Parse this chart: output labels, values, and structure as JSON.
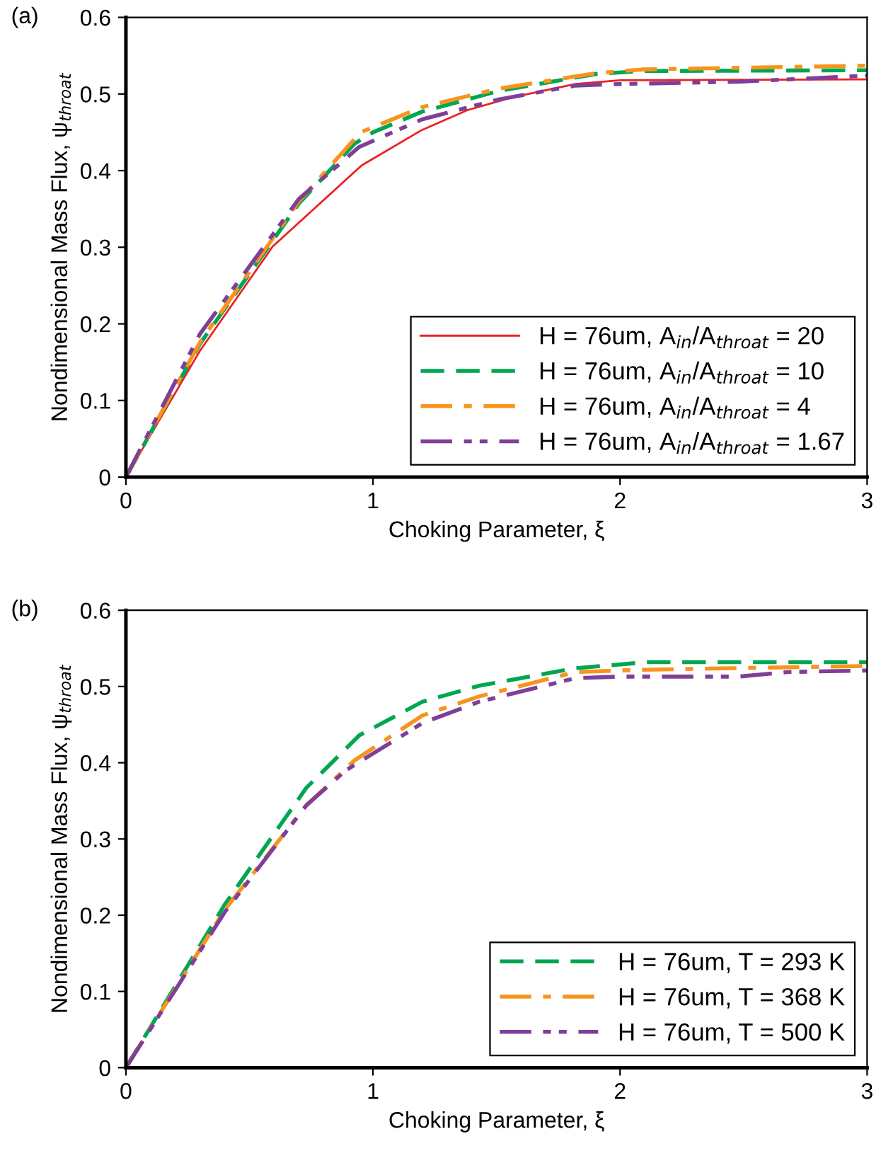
{
  "chart_data": [
    {
      "type": "line",
      "title": "(a)",
      "xlabel": "Choking Parameter, ξ",
      "ylabel": "Nondimensional Mass Flux, ψ$_{throat}$",
      "xlim": [
        0,
        3
      ],
      "ylim": [
        0,
        0.6
      ],
      "xticks": [
        0,
        1,
        2,
        3
      ],
      "yticks": [
        0,
        0.1,
        0.2,
        0.3,
        0.4,
        0.5,
        0.6
      ],
      "grid": false,
      "legend": "bottom right",
      "series": [
        {
          "name": "H = 76um, A$_{in}$/A$_{throat}$ = 20",
          "color": "#ed2024",
          "line_style": "solid",
          "x": [
            0,
            0.3,
            0.594,
            0.955,
            1.198,
            1.383,
            1.568,
            1.82,
            2.0,
            3.0
          ],
          "values": [
            0,
            0.165,
            0.301,
            0.407,
            0.453,
            0.479,
            0.496,
            0.513,
            0.518,
            0.519
          ]
        },
        {
          "name": "H = 76um, A$_{in}$/A$_{throat}$ = 10",
          "color": "#00a651",
          "line_style": "dashed",
          "x": [
            0,
            0.3,
            0.7,
            0.925,
            1.0,
            1.2,
            1.51,
            1.9,
            2.09,
            3.0
          ],
          "values": [
            0,
            0.174,
            0.357,
            0.435,
            0.45,
            0.477,
            0.504,
            0.526,
            0.53,
            0.531
          ]
        },
        {
          "name": "H = 76um, A$_{in}$/A$_{throat}$ = 4",
          "color": "#f7941d",
          "line_style": "dashdot",
          "x": [
            0,
            0.3,
            0.7,
            0.95,
            1.2,
            1.51,
            1.9,
            2.09,
            3.0
          ],
          "values": [
            0,
            0.176,
            0.36,
            0.45,
            0.483,
            0.507,
            0.527,
            0.532,
            0.537
          ]
        },
        {
          "name": "H = 76um, A$_{in}$/A$_{throat}$ = 1.67",
          "color": "#7f3f98",
          "line_style": "dashdotdot",
          "x": [
            0,
            0.3,
            0.7,
            0.945,
            1.2,
            1.51,
            1.82,
            2.0,
            2.48,
            3.0
          ],
          "values": [
            0,
            0.187,
            0.363,
            0.431,
            0.467,
            0.493,
            0.511,
            0.513,
            0.516,
            0.524
          ]
        }
      ]
    },
    {
      "type": "line",
      "title": "(b)",
      "xlabel": "Choking Parameter, ξ",
      "ylabel": "Nondimensional Mass Flux, ψ$_{throat}$",
      "xlim": [
        0,
        3
      ],
      "ylim": [
        0,
        0.6
      ],
      "xticks": [
        0,
        1,
        2,
        3
      ],
      "yticks": [
        0,
        0.1,
        0.2,
        0.3,
        0.4,
        0.5,
        0.6
      ],
      "grid": false,
      "legend": "bottom right",
      "series": [
        {
          "name": "H = 76um, T = 293 K",
          "color": "#00a651",
          "line_style": "dashed",
          "x": [
            0,
            0.4,
            0.73,
            0.945,
            1.2,
            1.43,
            1.82,
            2.11,
            3.0
          ],
          "values": [
            0,
            0.214,
            0.367,
            0.436,
            0.48,
            0.501,
            0.524,
            0.532,
            0.532
          ]
        },
        {
          "name": "H = 76um, T = 368 K",
          "color": "#f7941d",
          "line_style": "dashdot",
          "x": [
            0,
            0.4,
            0.73,
            0.925,
            1.2,
            1.43,
            1.82,
            2.09,
            3.0
          ],
          "values": [
            0,
            0.207,
            0.344,
            0.403,
            0.462,
            0.487,
            0.519,
            0.522,
            0.527
          ]
        },
        {
          "name": "H = 76um, T = 500 K",
          "color": "#7f3f98",
          "line_style": "dashdotdot",
          "x": [
            0,
            0.4,
            0.73,
            0.89,
            1.2,
            1.43,
            1.82,
            2.0,
            2.48,
            2.68,
            3.0
          ],
          "values": [
            0,
            0.204,
            0.344,
            0.39,
            0.452,
            0.48,
            0.511,
            0.513,
            0.513,
            0.519,
            0.521
          ]
        }
      ]
    }
  ]
}
